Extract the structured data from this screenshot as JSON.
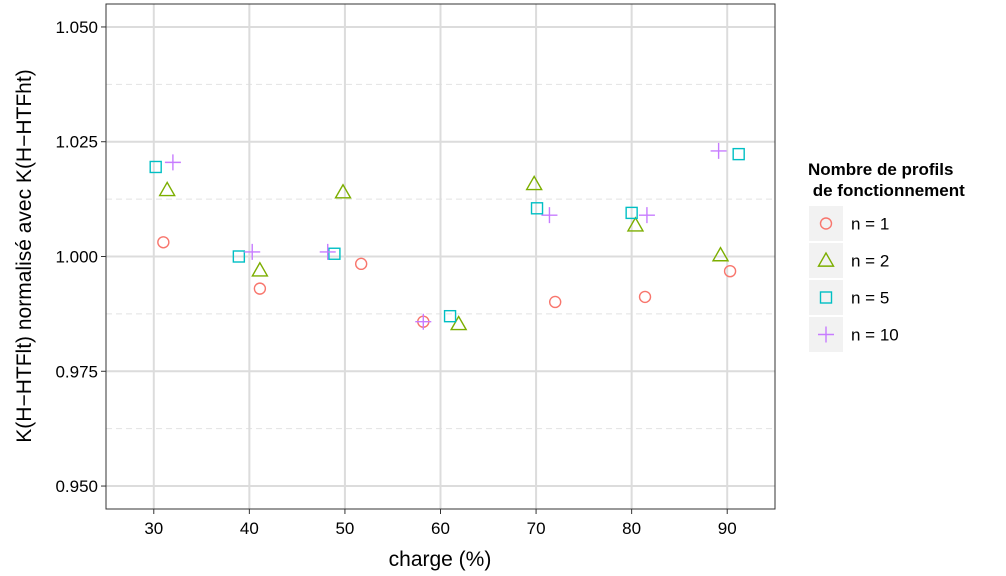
{
  "chart_data": {
    "type": "scatter",
    "xlabel": "charge (%)",
    "ylabel": "K(H−HTFlt) normalisé avec K(H−HTFht)",
    "xlim": [
      25,
      95
    ],
    "ylim": [
      0.945,
      1.055
    ],
    "x_ticks": [
      30,
      40,
      50,
      60,
      70,
      80,
      90
    ],
    "y_ticks": [
      0.95,
      0.975,
      1.0,
      1.025,
      1.05
    ],
    "y_tick_labels": [
      "0.950",
      "0.975",
      "1.000",
      "1.025",
      "1.050"
    ],
    "grid": true,
    "legend": {
      "title_lines": [
        "Nombre de profils",
        " de fonctionnement"
      ],
      "position": "right"
    },
    "series": [
      {
        "name": "n = 1",
        "marker": "circle",
        "color": "#F8766D",
        "points": [
          [
            31.0,
            1.0031
          ],
          [
            41.1,
            0.993
          ],
          [
            51.7,
            0.9984
          ],
          [
            58.2,
            0.9858
          ],
          [
            72.0,
            0.9901
          ],
          [
            81.4,
            0.9912
          ],
          [
            90.3,
            0.9968
          ]
        ]
      },
      {
        "name": "n = 2",
        "marker": "triangle",
        "color": "#7CAE00",
        "points": [
          [
            31.4,
            1.0145
          ],
          [
            41.1,
            0.997
          ],
          [
            49.8,
            1.014
          ],
          [
            61.9,
            0.9853
          ],
          [
            69.8,
            1.0158
          ],
          [
            80.4,
            1.0068
          ],
          [
            89.3,
            1.0003
          ]
        ]
      },
      {
        "name": "n = 5",
        "marker": "square",
        "color": "#00BFC4",
        "points": [
          [
            30.2,
            1.0195
          ],
          [
            38.9,
            1.0
          ],
          [
            48.9,
            1.0006
          ],
          [
            61.0,
            0.987
          ],
          [
            70.1,
            1.0105
          ],
          [
            80.0,
            1.0095
          ],
          [
            91.2,
            1.0223
          ]
        ]
      },
      {
        "name": "n = 10",
        "marker": "plus",
        "color": "#C77CFF",
        "points": [
          [
            32.0,
            1.0205
          ],
          [
            40.3,
            1.001
          ],
          [
            48.2,
            1.001
          ],
          [
            58.2,
            0.9858
          ],
          [
            71.4,
            1.009
          ],
          [
            81.6,
            1.009
          ],
          [
            89.1,
            1.023
          ]
        ]
      }
    ]
  }
}
